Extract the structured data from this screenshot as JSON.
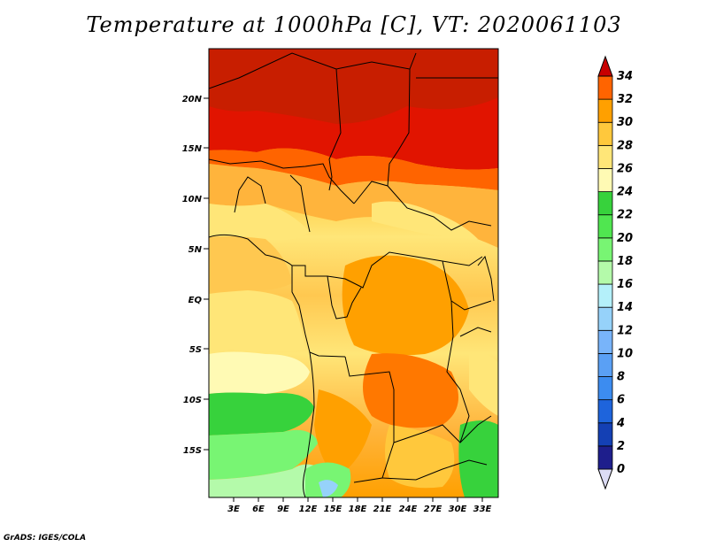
{
  "title": "Temperature at 1000hPa [C], VT: 2020061103",
  "credit": "GrADS: IGES/COLA",
  "lat_labels": [
    "20N",
    "15N",
    "10N",
    "5N",
    "EQ",
    "5S",
    "10S",
    "15S"
  ],
  "lon_labels": [
    "3E",
    "6E",
    "9E",
    "12E",
    "15E",
    "18E",
    "21E",
    "24E",
    "27E",
    "30E",
    "33E"
  ],
  "colorbar": {
    "labels": [
      "0",
      "2",
      "4",
      "6",
      "8",
      "10",
      "12",
      "14",
      "16",
      "18",
      "20",
      "22",
      "24",
      "26",
      "28",
      "30",
      "32",
      "34"
    ],
    "colors": [
      "#1e1e8c",
      "#1440b4",
      "#1e64dc",
      "#3c8cf0",
      "#5aa0f5",
      "#78b4fa",
      "#96d2fa",
      "#b4f0fa",
      "#b4faaa",
      "#78f573",
      "#50e650",
      "#37d23c",
      "#fffab4",
      "#ffe678",
      "#ffc83c",
      "#ffa000",
      "#ff6400",
      "#e11400",
      "#c80000"
    ]
  }
}
